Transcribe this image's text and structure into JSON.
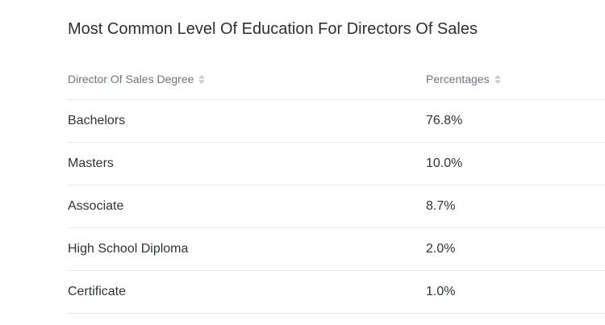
{
  "title": "Most Common Level Of Education For Directors Of Sales",
  "table": {
    "headers": [
      "Director Of Sales Degree",
      "Percentages"
    ],
    "rows": [
      [
        "Bachelors",
        "76.8%"
      ],
      [
        "Masters",
        "10.0%"
      ],
      [
        "Associate",
        "8.7%"
      ],
      [
        "High School Diploma",
        "2.0%"
      ],
      [
        "Certificate",
        "1.0%"
      ]
    ]
  }
}
